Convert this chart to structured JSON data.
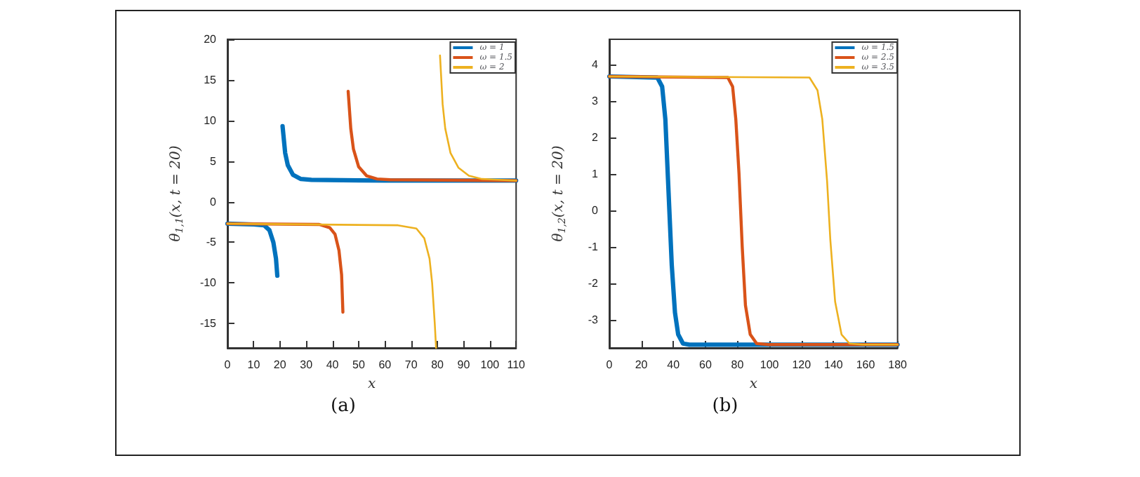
{
  "chart_data": [
    {
      "type": "line",
      "xlabel": "x",
      "ylabel": "θ$_{1,1}$(x, t = 20)",
      "annotations": [
        "(a)"
      ],
      "xlim": [
        0,
        110
      ],
      "xticks": [
        0,
        10,
        20,
        30,
        40,
        50,
        60,
        70,
        80,
        90,
        100,
        110
      ],
      "ylim": [
        -18,
        20
      ],
      "yticks": [
        -15,
        -10,
        -5,
        0,
        5,
        10,
        15,
        20
      ],
      "grid": false,
      "legend": "top right",
      "marker": "none",
      "line_style": "solid",
      "series": [
        {
          "name": "ω = 1",
          "color": "#0072bd",
          "x": [
            0,
            10,
            14,
            16,
            17.5,
            18.5,
            19,
            20,
            21,
            22,
            23,
            25,
            28,
            32,
            60,
            110
          ],
          "values": [
            -2.7,
            -2.8,
            -2.9,
            -3.5,
            -5,
            -7,
            -9.1,
            null,
            9.3,
            6,
            4.5,
            3.3,
            2.8,
            2.7,
            2.6,
            2.6
          ]
        },
        {
          "name": "ω = 1.5",
          "color": "#d95319",
          "x": [
            0,
            35,
            39,
            41,
            42.5,
            43.5,
            44,
            45,
            46,
            47,
            48,
            50,
            53,
            57,
            62,
            110
          ],
          "values": [
            -2.7,
            -2.8,
            -3.2,
            -4,
            -6,
            -9,
            -13.6,
            null,
            13.6,
            9,
            6.5,
            4.3,
            3.2,
            2.8,
            2.7,
            2.6
          ]
        },
        {
          "name": "ω = 2",
          "color": "#edb120",
          "x": [
            0,
            65,
            72,
            75,
            77,
            78,
            79,
            79.5,
            80,
            81,
            82,
            83,
            85,
            88,
            92,
            97,
            103,
            110
          ],
          "values": [
            -2.7,
            -2.9,
            -3.3,
            -4.5,
            -7,
            -10,
            -15,
            -18,
            null,
            18,
            12,
            9,
            6,
            4.2,
            3.2,
            2.8,
            2.7,
            2.6
          ]
        }
      ]
    },
    {
      "type": "line",
      "xlabel": "x",
      "ylabel": "θ$_{1,2}$(x, t = 20)",
      "annotations": [
        "(b)"
      ],
      "xlim": [
        0,
        180
      ],
      "xticks": [
        0,
        20,
        40,
        60,
        80,
        100,
        120,
        140,
        160,
        180
      ],
      "ylim": [
        -3.77,
        4.7
      ],
      "yticks": [
        -3,
        -2,
        -1,
        0,
        1,
        2,
        3,
        4
      ],
      "grid": false,
      "legend": "top right",
      "marker": "none",
      "line_style": "solid",
      "series": [
        {
          "name": "ω = 1.5",
          "color": "#0072bd",
          "x": [
            0,
            30,
            33,
            35,
            37,
            39,
            41,
            43,
            46,
            50,
            180
          ],
          "values": [
            3.68,
            3.65,
            3.4,
            2.5,
            0.5,
            -1.5,
            -2.8,
            -3.4,
            -3.65,
            -3.68,
            -3.68
          ]
        },
        {
          "name": "ω = 2.5",
          "color": "#d95319",
          "x": [
            0,
            74,
            77,
            79,
            81,
            83,
            85,
            88,
            92,
            100,
            180
          ],
          "values": [
            3.68,
            3.65,
            3.4,
            2.5,
            1,
            -1,
            -2.6,
            -3.4,
            -3.65,
            -3.68,
            -3.68
          ]
        },
        {
          "name": "ω = 3.5",
          "color": "#edb120",
          "x": [
            0,
            125,
            130,
            133,
            136,
            138,
            141,
            145,
            150,
            158,
            180
          ],
          "values": [
            3.68,
            3.65,
            3.3,
            2.5,
            0.8,
            -0.8,
            -2.5,
            -3.4,
            -3.65,
            -3.68,
            -3.68
          ]
        }
      ]
    }
  ]
}
